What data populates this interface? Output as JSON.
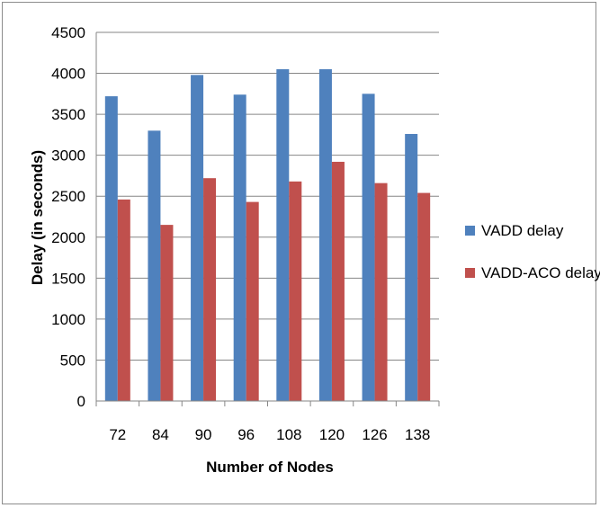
{
  "chart_data": {
    "type": "bar",
    "title": "",
    "xlabel": "Number of Nodes",
    "ylabel": "Delay (in seconds)",
    "categories": [
      "72",
      "84",
      "90",
      "96",
      "108",
      "120",
      "126",
      "138"
    ],
    "series": [
      {
        "name": "VADD delay",
        "color": "#4F81BD",
        "values": [
          3720,
          3300,
          3980,
          3740,
          4050,
          4050,
          3750,
          3260
        ]
      },
      {
        "name": "VADD-ACO delay",
        "color": "#C0504D",
        "values": [
          2460,
          2150,
          2720,
          2430,
          2680,
          2920,
          2660,
          2540
        ]
      }
    ],
    "ylim": [
      0,
      4500
    ],
    "yticks": [
      "0",
      "500",
      "1000",
      "1500",
      "2000",
      "2500",
      "3000",
      "3500",
      "4000",
      "4500"
    ],
    "grid": true,
    "legend_position": "right"
  }
}
